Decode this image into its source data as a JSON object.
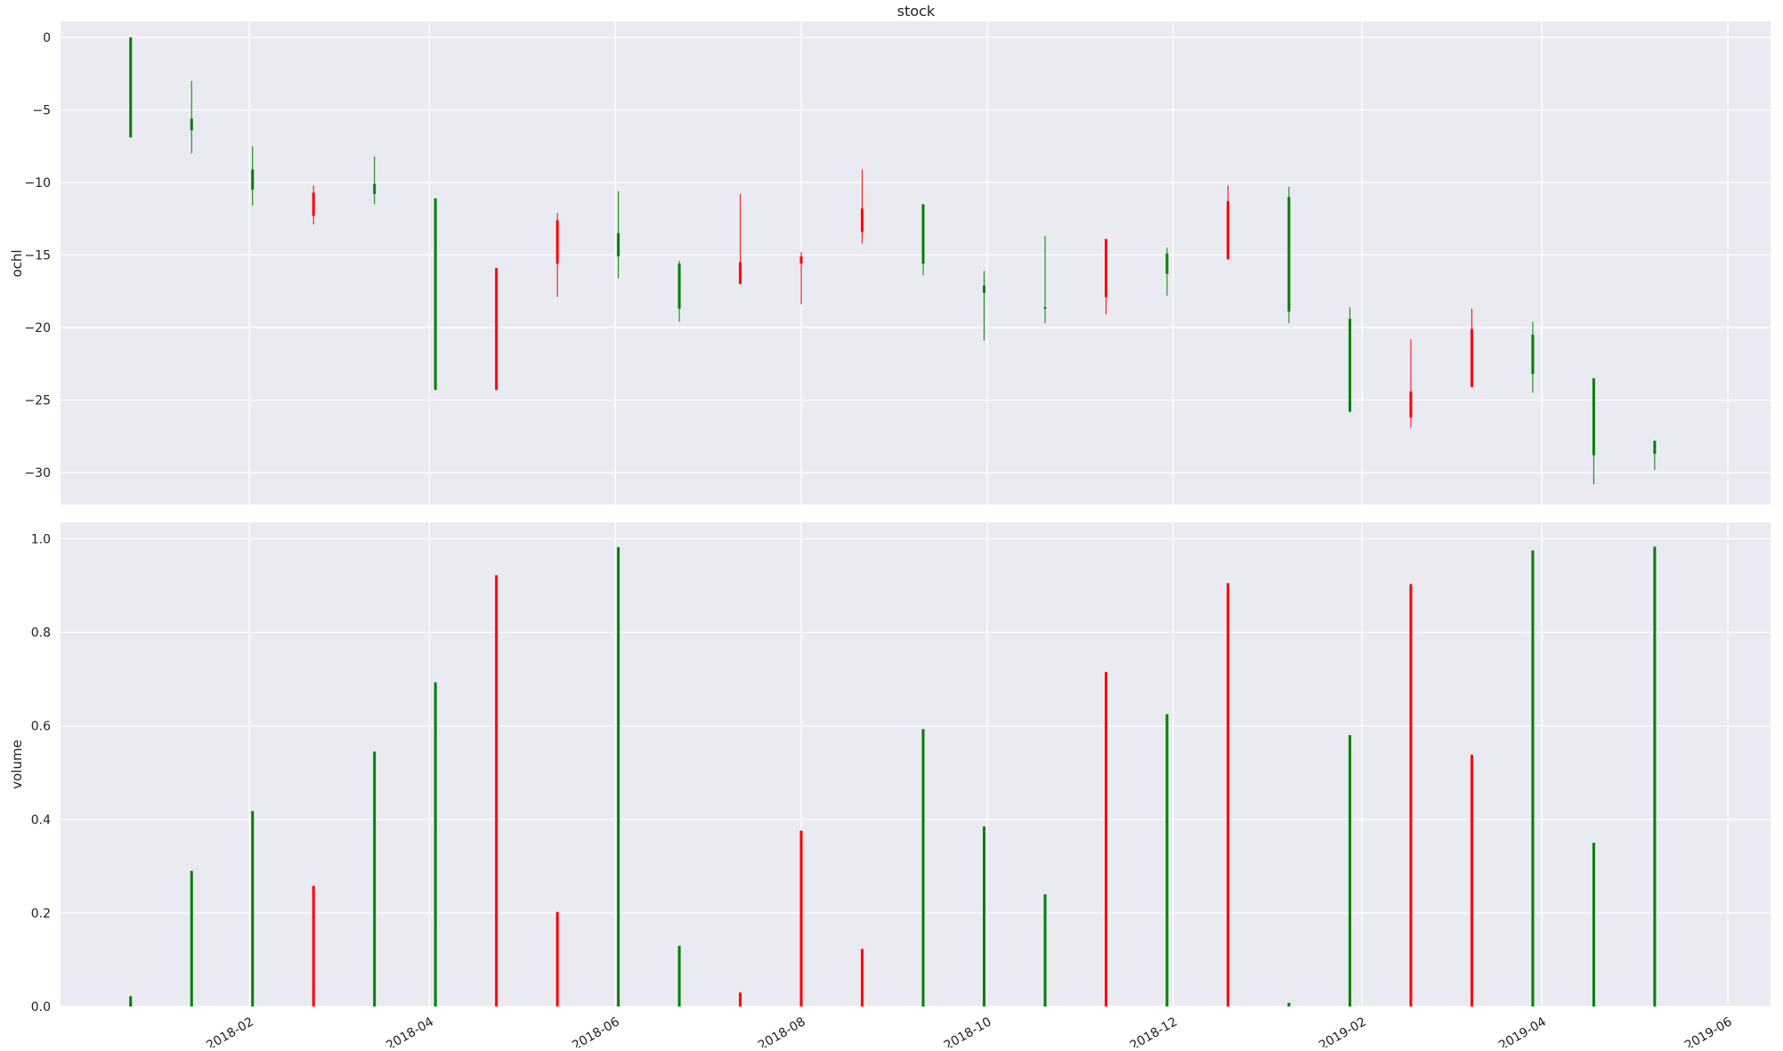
{
  "figure_title": "stock",
  "colors": {
    "up": "#008000",
    "down": "#ff0000",
    "plot_bg": "#eaeaf2",
    "grid": "#ffffff"
  },
  "chart_data": {
    "type": "candlestick",
    "title": "stock",
    "xlim": [
      "2017-12-01",
      "2019-06-15"
    ],
    "x_ticks": [
      "2018-02",
      "2018-04",
      "2018-06",
      "2018-08",
      "2018-10",
      "2018-12",
      "2019-02",
      "2019-04",
      "2019-06"
    ],
    "price_panel": {
      "ylabel": "ochl",
      "ylim": [
        -32.2,
        1.1
      ],
      "y_ticks": [
        0,
        -5,
        -10,
        -15,
        -20,
        -25,
        -30
      ],
      "grid": true
    },
    "volume_panel": {
      "ylabel": "volume",
      "ylim": [
        0,
        1.035
      ],
      "y_ticks": [
        0.0,
        0.2,
        0.4,
        0.6,
        0.8,
        1.0
      ],
      "grid": true
    },
    "candles": [
      {
        "date": "2017-12-24",
        "open": -6.9,
        "close": 0.0,
        "high": 0.0,
        "low": -6.9,
        "volume": 0.022
      },
      {
        "date": "2018-01-13",
        "open": -6.4,
        "close": -5.6,
        "high": -3.0,
        "low": -8.0,
        "volume": 0.29
      },
      {
        "date": "2018-02-02",
        "open": -10.5,
        "close": -9.1,
        "high": -7.5,
        "low": -11.6,
        "volume": 0.418
      },
      {
        "date": "2018-02-22",
        "open": -10.7,
        "close": -12.3,
        "high": -10.2,
        "low": -12.9,
        "volume": 0.258
      },
      {
        "date": "2018-03-14",
        "open": -10.8,
        "close": -10.1,
        "high": -8.2,
        "low": -11.5,
        "volume": 0.545
      },
      {
        "date": "2018-04-03",
        "open": -24.3,
        "close": -11.1,
        "high": -11.1,
        "low": -24.3,
        "volume": 0.693
      },
      {
        "date": "2018-04-23",
        "open": -15.9,
        "close": -24.3,
        "high": -15.9,
        "low": -24.3,
        "volume": 0.922
      },
      {
        "date": "2018-05-13",
        "open": -12.6,
        "close": -15.6,
        "high": -12.1,
        "low": -17.9,
        "volume": 0.202
      },
      {
        "date": "2018-06-02",
        "open": -15.1,
        "close": -13.5,
        "high": -10.6,
        "low": -16.6,
        "volume": 0.982
      },
      {
        "date": "2018-06-22",
        "open": -18.7,
        "close": -15.6,
        "high": -15.4,
        "low": -19.6,
        "volume": 0.13
      },
      {
        "date": "2018-07-12",
        "open": -15.5,
        "close": -17.0,
        "high": -10.8,
        "low": -17.0,
        "volume": 0.03
      },
      {
        "date": "2018-08-01",
        "open": -15.1,
        "close": -15.6,
        "high": -14.8,
        "low": -18.4,
        "volume": 0.376
      },
      {
        "date": "2018-08-21",
        "open": -11.8,
        "close": -13.4,
        "high": -9.1,
        "low": -14.2,
        "volume": 0.123
      },
      {
        "date": "2018-09-10",
        "open": -15.6,
        "close": -11.5,
        "high": -11.5,
        "low": -16.4,
        "volume": 0.593
      },
      {
        "date": "2018-09-30",
        "open": -17.6,
        "close": -17.1,
        "high": -16.1,
        "low": -20.9,
        "volume": 0.385
      },
      {
        "date": "2018-10-20",
        "open": -18.7,
        "close": -18.6,
        "high": -13.7,
        "low": -19.7,
        "volume": 0.24
      },
      {
        "date": "2018-11-09",
        "open": -13.9,
        "close": -17.9,
        "high": -13.9,
        "low": -19.1,
        "volume": 0.715
      },
      {
        "date": "2018-11-29",
        "open": -16.3,
        "close": -14.9,
        "high": -14.5,
        "low": -17.8,
        "volume": 0.625
      },
      {
        "date": "2018-12-19",
        "open": -11.3,
        "close": -15.3,
        "high": -10.2,
        "low": -15.3,
        "volume": 0.905
      },
      {
        "date": "2019-01-08",
        "open": -18.9,
        "close": -11.0,
        "high": -10.3,
        "low": -19.7,
        "volume": 0.008
      },
      {
        "date": "2019-01-28",
        "open": -25.8,
        "close": -19.4,
        "high": -18.6,
        "low": -25.8,
        "volume": 0.58
      },
      {
        "date": "2019-02-17",
        "open": -24.4,
        "close": -26.2,
        "high": -20.8,
        "low": -26.9,
        "volume": 0.903
      },
      {
        "date": "2019-03-09",
        "open": -20.1,
        "close": -24.1,
        "high": -18.7,
        "low": -24.1,
        "volume": 0.538
      },
      {
        "date": "2019-03-29",
        "open": -23.2,
        "close": -20.5,
        "high": -19.6,
        "low": -24.5,
        "volume": 0.975
      },
      {
        "date": "2019-04-18",
        "open": -28.8,
        "close": -23.5,
        "high": -23.5,
        "low": -30.8,
        "volume": 0.35
      },
      {
        "date": "2019-05-08",
        "open": -28.7,
        "close": -27.8,
        "high": -27.8,
        "low": -29.8,
        "volume": 0.983
      }
    ]
  }
}
